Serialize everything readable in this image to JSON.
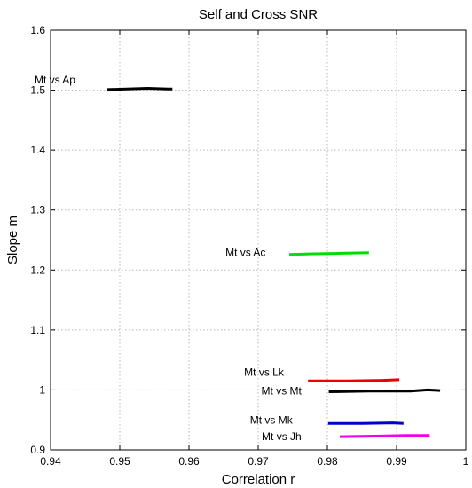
{
  "chart_data": {
    "type": "line",
    "title": "Self and Cross SNR",
    "xlabel": "Correlation r",
    "ylabel": "Slope m",
    "xlim": [
      0.94,
      1.0
    ],
    "ylim": [
      0.9,
      1.6
    ],
    "grid": true,
    "x_ticks": [
      0.94,
      0.95,
      0.96,
      0.97,
      0.98,
      0.99,
      1.0
    ],
    "x_tick_labels": [
      "0.94",
      "0.95",
      "0.96",
      "0.97",
      "0.98",
      "0.99",
      "1"
    ],
    "y_ticks": [
      0.9,
      1.0,
      1.1,
      1.2,
      1.3,
      1.4,
      1.5,
      1.6
    ],
    "y_tick_labels": [
      "0.9",
      "1",
      "1.1",
      "1.2",
      "1.3",
      "1.4",
      "1.5",
      "1.6"
    ],
    "series": [
      {
        "name": "Mt vs Ap",
        "color": "#000000",
        "x": [
          0.9482,
          0.951,
          0.954,
          0.957,
          0.9576
        ],
        "y": [
          1.501,
          1.502,
          1.503,
          1.502,
          1.502
        ]
      },
      {
        "name": "Mt vs Ac",
        "color": "#00dd00",
        "x": [
          0.9745,
          0.978,
          0.982,
          0.986
        ],
        "y": [
          1.226,
          1.227,
          1.228,
          1.229
        ]
      },
      {
        "name": "Mt vs Lk",
        "color": "#ee0000",
        "x": [
          0.9772,
          0.983,
          0.988,
          0.9904
        ],
        "y": [
          1.015,
          1.015,
          1.016,
          1.017
        ]
      },
      {
        "name": "Mt vs Mt",
        "color": "#000000",
        "x": [
          0.9802,
          0.986,
          0.992,
          0.9945,
          0.9963
        ],
        "y": [
          0.997,
          0.998,
          0.998,
          1.0,
          0.999
        ]
      },
      {
        "name": "Mt vs Mk",
        "color": "#0000cc",
        "x": [
          0.9801,
          0.985,
          0.9895,
          0.991
        ],
        "y": [
          0.944,
          0.944,
          0.945,
          0.944
        ]
      },
      {
        "name": "Mt vs Jh",
        "color": "#ee00ee",
        "x": [
          0.9818,
          0.987,
          0.9915,
          0.9948
        ],
        "y": [
          0.922,
          0.923,
          0.924,
          0.924
        ]
      }
    ]
  }
}
